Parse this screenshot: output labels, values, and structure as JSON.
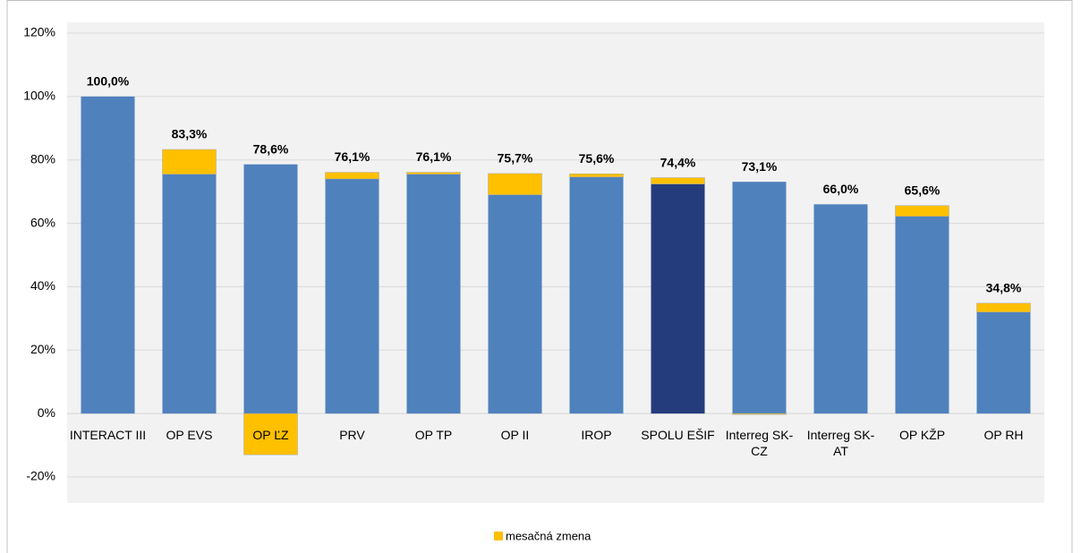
{
  "chart_data": {
    "type": "stacked_bar",
    "categories": [
      "INTERACT III",
      "OP EVS",
      "OP ĽZ",
      "PRV",
      "OP TP",
      "OP II",
      "IROP",
      "SPOLU EŠIF",
      "Interreg SK-CZ",
      "Interreg SK-AT",
      "OP KŽP",
      "OP RH"
    ],
    "series": [
      {
        "color": "#4f81bd",
        "colors": [
          "#4f81bd",
          "#4f81bd",
          "#4f81bd",
          "#4f81bd",
          "#4f81bd",
          "#4f81bd",
          "#4f81bd",
          "#253c7c",
          "#4f81bd",
          "#4f81bd",
          "#4f81bd",
          "#4f81bd"
        ],
        "values": [
          100,
          75.5,
          78.6,
          74.0,
          75.5,
          69.0,
          74.6,
          72.4,
          73.1,
          66.0,
          62.2,
          32.0
        ]
      },
      {
        "name": "mesačná zmena",
        "color": "#ffc000",
        "values": [
          0,
          7.8,
          -13.0,
          2.1,
          0.6,
          6.7,
          1.0,
          2.0,
          -0.3,
          0,
          3.4,
          2.8
        ]
      }
    ],
    "data_labels": [
      "100,0%",
      "83,3%",
      "78,6%",
      "76,1%",
      "76,1%",
      "75,7%",
      "75,6%",
      "74,4%",
      "73,1%",
      "66,0%",
      "65,6%",
      "34,8%"
    ],
    "ylim": [
      -20,
      120
    ],
    "yticks": [
      {
        "value": -20,
        "label": "-20%"
      },
      {
        "value": 0,
        "label": "0%"
      },
      {
        "value": 20,
        "label": "20%"
      },
      {
        "value": 40,
        "label": "40%"
      },
      {
        "value": 60,
        "label": "60%"
      },
      {
        "value": 80,
        "label": "80%"
      },
      {
        "value": 100,
        "label": "100%"
      },
      {
        "value": 120,
        "label": "120%"
      }
    ],
    "grid": true,
    "legend": "bottom"
  }
}
